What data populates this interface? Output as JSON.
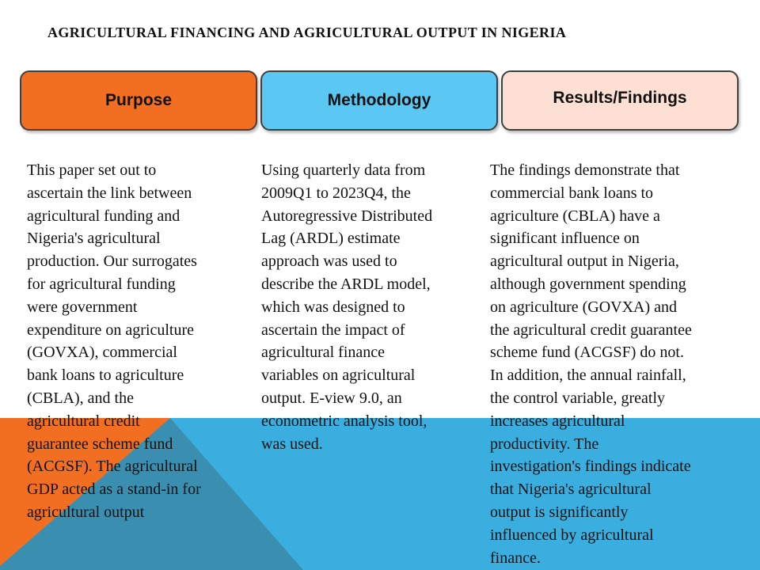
{
  "slide": {
    "title": "AGRICULTURAL  FINANCING  AND AGRICULTURAL  OUTPUT  IN  NIGERIA"
  },
  "columns": [
    {
      "header": "Purpose",
      "header_color": "#F26F22",
      "body": "This paper set out to\nascertain the link between\nagricultural funding and\nNigeria's agricultural\nproduction. Our surrogates\nfor agricultural funding\nwere government\nexpenditure on agriculture\n(GOVXA),  commercial\nbank loans to agriculture\n(CBLA), and the\nagricultural credit\nguarantee scheme fund\n(ACGSF).   The agricultural\nGDP acted as a stand-in for\nagricultural output"
    },
    {
      "header": "Methodology",
      "header_color": "#5BC8F3",
      "body": "Using  quarterly data from\n2009Q1 to 2023Q4, the\nAutoregressive Distributed\nLag (ARDL) estimate\napproach was used to\ndescribe the ARDL model,\nwhich was designed to\nascertain the impact of\nagricultural finance\nvariables on agricultural\noutput.  E-view 9.0, an\neconometric analysis tool,\nwas used."
    },
    {
      "header": "Results/Findings",
      "header_color": "#FDE0D3",
      "body": "The findings demonstrate that\ncommercial bank loans to\nagriculture (CBLA) have a\nsignificant influence on\nagricultural output in Nigeria,\nalthough government spending\non agriculture (GOVXA)  and\nthe agricultural credit guarantee\nscheme fund (ACGSF)  do not.\nIn addition, the annual rainfall,\nthe control variable, greatly\nincreases agricultural\nproductivity.  The\ninvestigation's findings indicate\nthat Nigeria's agricultural\noutput is significantly\ninfluenced by agricultural\nfinance."
    }
  ],
  "decor_colors": {
    "blue_band": "#3AAEDE",
    "orange_triangle": "#F26F22",
    "teal_overlap": "#3A8FB0"
  }
}
